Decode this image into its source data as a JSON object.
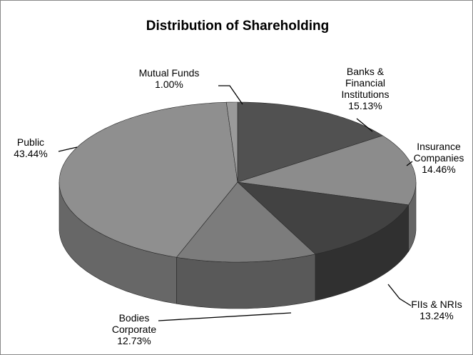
{
  "chart_data": {
    "type": "pie",
    "title": "Distribution of Shareholding",
    "categories": [
      "Banks &\nFinancial\nInstitutions",
      "Insurance\nCompanies",
      "FIIs & NRIs",
      "Bodies\nCorporate",
      "Public",
      "Mutual Funds"
    ],
    "values": [
      15.13,
      14.46,
      13.24,
      12.73,
      43.44,
      1.0
    ],
    "value_labels": [
      "15.13%",
      "14.46%",
      "13.24%",
      "12.73%",
      "43.44%",
      "1.00%"
    ],
    "colors": [
      "#515151",
      "#8c8c8c",
      "#424242",
      "#7c7c7c",
      "#8f8f8f",
      "#9a9a9a"
    ]
  }
}
